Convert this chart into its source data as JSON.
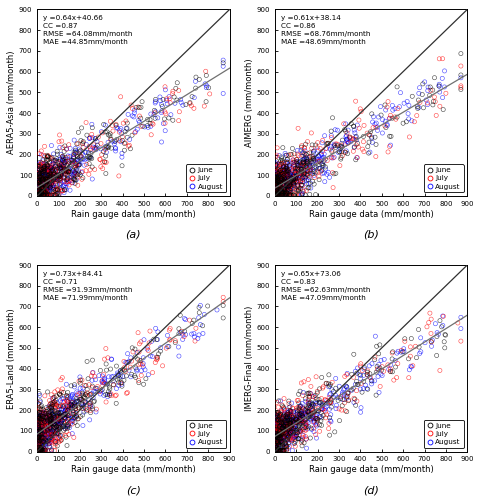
{
  "subplots": [
    {
      "label": "(a)",
      "ylabel": "AERA5-Asia (mm/month)",
      "equation": "y =0.64x+40.66",
      "cc": "CC =0.87",
      "rmse": "RMSE =64.08mm/month",
      "mae": "MAE =44.85mm/month",
      "slope": 0.64,
      "intercept": 40.66
    },
    {
      "label": "(b)",
      "ylabel": "AIMERG (mm/month)",
      "equation": "y =0.61x+38.14",
      "cc": "CC =0.86",
      "rmse": "RMSE =68.76mm/month",
      "mae": "MAE =48.69mm/month",
      "slope": 0.61,
      "intercept": 38.14
    },
    {
      "label": "(c)",
      "ylabel": "ERA5-Land (mm/month)",
      "equation": "y =0.73x+84.41",
      "cc": "CC =0.71",
      "rmse": "RMSE =91.93mm/month",
      "mae": "MAE =71.99mm/month",
      "slope": 0.73,
      "intercept": 84.41
    },
    {
      "label": "(d)",
      "ylabel": "IMERG-Final (mm/month)",
      "equation": "y =0.65x+73.06",
      "cc": "CC =0.83",
      "rmse": "RMSE =62.63mm/month",
      "mae": "MAE =47.09mm/month",
      "slope": 0.65,
      "intercept": 73.06
    }
  ],
  "xlabel": "Rain gauge data (mm/month)",
  "xlim": [
    0,
    900
  ],
  "ylim": [
    0,
    900
  ],
  "xticks": [
    0,
    100,
    200,
    300,
    400,
    500,
    600,
    700,
    800,
    900
  ],
  "yticks": [
    0,
    100,
    200,
    300,
    400,
    500,
    600,
    700,
    800,
    900
  ],
  "colors": {
    "June": "#000000",
    "July": "#ff0000",
    "August": "#0000ff"
  },
  "legend_labels": [
    "June",
    "July",
    "August"
  ],
  "marker_size": 3,
  "line_color_11": "#303030",
  "line_color_fit": "#707070",
  "background": "#ffffff"
}
